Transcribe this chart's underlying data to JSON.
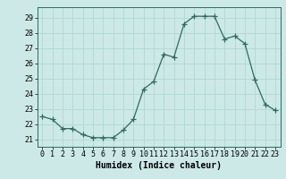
{
  "x": [
    0,
    1,
    2,
    3,
    4,
    5,
    6,
    7,
    8,
    9,
    10,
    11,
    12,
    13,
    14,
    15,
    16,
    17,
    18,
    19,
    20,
    21,
    22,
    23
  ],
  "y": [
    22.5,
    22.3,
    21.7,
    21.7,
    21.3,
    21.1,
    21.1,
    21.1,
    21.6,
    22.3,
    24.3,
    24.8,
    26.6,
    26.4,
    28.6,
    29.1,
    29.1,
    29.1,
    27.6,
    27.8,
    27.3,
    24.9,
    23.3,
    22.9
  ],
  "line_color": "#2d6b5e",
  "marker": "+",
  "marker_size": 4,
  "bg_color": "#cce9e7",
  "grid_color": "#aad4d0",
  "xlabel": "Humidex (Indice chaleur)",
  "xlabel_fontsize": 7,
  "tick_fontsize": 6,
  "xlim": [
    -0.5,
    23.5
  ],
  "ylim": [
    20.5,
    29.7
  ],
  "yticks": [
    21,
    22,
    23,
    24,
    25,
    26,
    27,
    28,
    29
  ],
  "xticks": [
    0,
    1,
    2,
    3,
    4,
    5,
    6,
    7,
    8,
    9,
    10,
    11,
    12,
    13,
    14,
    15,
    16,
    17,
    18,
    19,
    20,
    21,
    22,
    23
  ]
}
